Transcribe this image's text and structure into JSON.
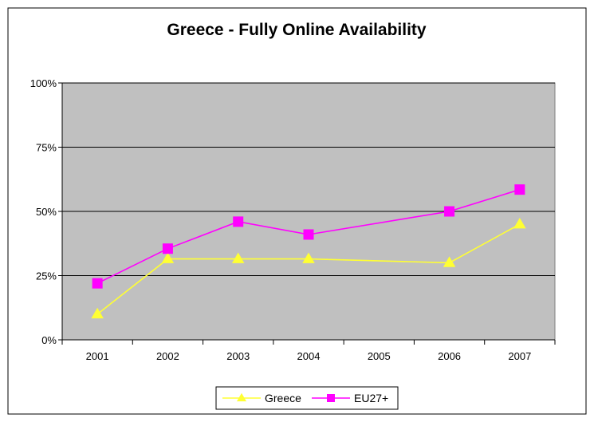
{
  "chart_data": {
    "type": "line",
    "title": "Greece - Fully Online Availability",
    "xlabel": "",
    "ylabel": "",
    "categories": [
      "2001",
      "2002",
      "2003",
      "2004",
      "2005",
      "2006",
      "2007"
    ],
    "y_ticks": [
      "0%",
      "25%",
      "50%",
      "75%",
      "100%"
    ],
    "ylim": [
      0,
      100
    ],
    "grid": true,
    "legend_position": "bottom",
    "plot_background": "#c0c0c0",
    "series": [
      {
        "name": "Greece",
        "color": "#ffff33",
        "marker": "triangle",
        "points": [
          {
            "x": "2001",
            "y": 10
          },
          {
            "x": "2002",
            "y": 31.5
          },
          {
            "x": "2003",
            "y": 31.5
          },
          {
            "x": "2004",
            "y": 31.5
          },
          {
            "x": "2006",
            "y": 30
          },
          {
            "x": "2007",
            "y": 45
          }
        ]
      },
      {
        "name": "EU27+",
        "color": "#ff00ff",
        "marker": "square",
        "points": [
          {
            "x": "2001",
            "y": 22
          },
          {
            "x": "2002",
            "y": 35.5
          },
          {
            "x": "2003",
            "y": 46
          },
          {
            "x": "2004",
            "y": 41
          },
          {
            "x": "2006",
            "y": 50
          },
          {
            "x": "2007",
            "y": 58.5
          }
        ]
      }
    ]
  }
}
